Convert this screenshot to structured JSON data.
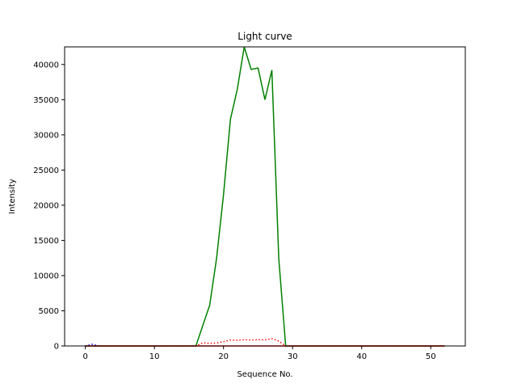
{
  "chart_data": {
    "type": "line",
    "title": "Light curve",
    "xlabel": "Sequence No.",
    "ylabel": "Intensity",
    "xlim": [
      -3,
      55
    ],
    "ylim": [
      0,
      42500
    ],
    "xticks": [
      0,
      10,
      20,
      30,
      40,
      50
    ],
    "yticks": [
      0,
      5000,
      10000,
      15000,
      20000,
      25000,
      30000,
      35000,
      40000
    ],
    "grid": false,
    "series": [
      {
        "color": "#008000",
        "style": "solid",
        "x": [
          0,
          1,
          2,
          3,
          4,
          5,
          6,
          7,
          8,
          9,
          10,
          11,
          12,
          13,
          14,
          15,
          16,
          17,
          18,
          19,
          20,
          21,
          22,
          23,
          24,
          25,
          26,
          27,
          28,
          29,
          30,
          31,
          32,
          33,
          34,
          35,
          36,
          37,
          38,
          39,
          40,
          41,
          42,
          43,
          44,
          45,
          46,
          47,
          48,
          49,
          50,
          51,
          52
        ],
        "y": [
          0,
          0,
          0,
          0,
          0,
          0,
          0,
          0,
          0,
          0,
          0,
          0,
          0,
          0,
          0,
          0,
          0,
          2900,
          5800,
          12500,
          21500,
          32200,
          36500,
          42500,
          39300,
          39500,
          35000,
          39200,
          12400,
          0,
          0,
          0,
          0,
          0,
          0,
          0,
          0,
          0,
          0,
          0,
          0,
          0,
          0,
          0,
          0,
          0,
          0,
          0,
          0,
          0,
          0,
          0,
          0
        ]
      },
      {
        "color": "#ff0000",
        "style": "dotted",
        "x": [
          0,
          1,
          2,
          3,
          4,
          5,
          6,
          7,
          8,
          9,
          10,
          11,
          12,
          13,
          14,
          15,
          16,
          17,
          18,
          19,
          20,
          21,
          22,
          23,
          24,
          25,
          26,
          27,
          28,
          29,
          30,
          31,
          32,
          33,
          34,
          35,
          36,
          37,
          38,
          39,
          40,
          41,
          42,
          43,
          44,
          45,
          46,
          47,
          48,
          49,
          50,
          51,
          52
        ],
        "y": [
          0,
          0,
          0,
          0,
          0,
          0,
          0,
          0,
          0,
          0,
          0,
          0,
          0,
          0,
          0,
          0,
          0,
          450,
          380,
          420,
          600,
          850,
          800,
          900,
          850,
          900,
          850,
          1050,
          700,
          0,
          0,
          0,
          0,
          0,
          0,
          0,
          0,
          0,
          0,
          0,
          0,
          0,
          0,
          0,
          0,
          0,
          0,
          0,
          0,
          0,
          0,
          0,
          0
        ]
      },
      {
        "color": "#0000ff",
        "style": "dotted",
        "x": [
          0,
          0.5,
          1,
          1.5,
          2
        ],
        "y": [
          0,
          120,
          240,
          120,
          0
        ]
      },
      {
        "color": "#ff0000",
        "style": "solid",
        "x": [
          0,
          52
        ],
        "y": [
          0,
          0
        ]
      }
    ]
  }
}
